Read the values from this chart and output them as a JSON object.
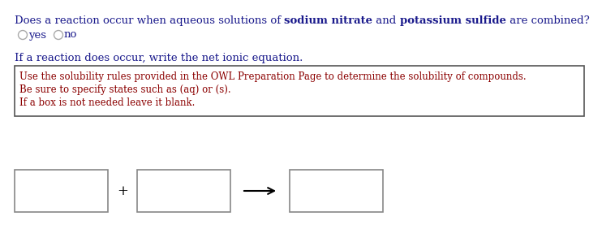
{
  "bg_color": "#ffffff",
  "question_normal1": "Does a reaction occur when aqueous solutions of ",
  "question_bold1": "sodium nitrate",
  "question_normal2": " and ",
  "question_bold2": "potassium sulfide",
  "question_normal3": " are combined?",
  "question_color": "#1a1a8c",
  "radio_yes": "yes",
  "radio_no": "no",
  "radio_color": "#1a1a8c",
  "subtext": "If a reaction does occur, write the net ionic equation.",
  "subtext_color": "#1a1a8c",
  "hint_line1": "Use the solubility rules provided in the OWL Preparation Page to determine the solubility of compounds.",
  "hint_line2": "Be sure to specify states such as (aq) or (s).",
  "hint_line3": "If a box is not needed leave it blank.",
  "hint_color": "#8B0000",
  "box_ec": "#888888",
  "font_size_q": 9.5,
  "font_size_hint": 8.5,
  "font_size_sub": 9.5
}
